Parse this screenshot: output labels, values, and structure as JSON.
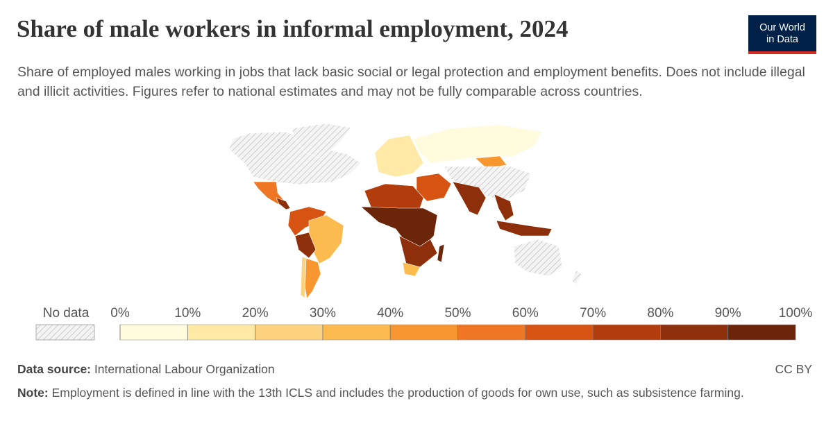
{
  "chart_data": {
    "type": "choropleth",
    "title": "Share of male workers in informal employment, 2024",
    "subtitle": "Share of employed males working in jobs that lack basic social or legal protection and employment benefits. Does not include illegal and illicit activities. Figures refer to national estimates and may not be fully comparable across countries.",
    "logo": [
      "Our World",
      "in Data"
    ],
    "no_data_label": "No data",
    "xlim": [
      0,
      100
    ],
    "xticks": [
      {
        "value": 0,
        "label": "0%"
      },
      {
        "value": 10,
        "label": "10%"
      },
      {
        "value": 20,
        "label": "20%"
      },
      {
        "value": 30,
        "label": "30%"
      },
      {
        "value": 40,
        "label": "40%"
      },
      {
        "value": 50,
        "label": "50%"
      },
      {
        "value": 60,
        "label": "60%"
      },
      {
        "value": 70,
        "label": "70%"
      },
      {
        "value": 80,
        "label": "80%"
      },
      {
        "value": 90,
        "label": "90%"
      },
      {
        "value": 100,
        "label": "100%"
      }
    ],
    "colors": [
      "#fffbdc",
      "#fee9a6",
      "#fdd37f",
      "#fbbb4f",
      "#f8962f",
      "#ef7622",
      "#d65312",
      "#b23c0b",
      "#8e2f0b",
      "#6b2509"
    ],
    "source_label": "Data source:",
    "source": "International Labour Organization",
    "license": "CC BY",
    "note_label": "Note:",
    "note": "Employment is defined in line with the 13th ICLS and includes the production of goods for own use, such as subsistence farming."
  }
}
